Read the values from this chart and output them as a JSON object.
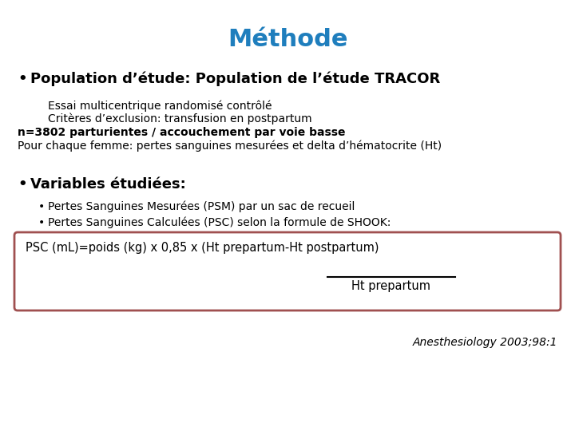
{
  "title": "Méthode",
  "title_color": "#1F7EBD",
  "title_fontsize": 22,
  "bg_color": "#ffffff",
  "bullet1_text": "Population d’étude: Population de l’étude TRACOR",
  "indent1_line1": "Essai multicentrique randomisé contrôlé",
  "indent1_line2": "Critères d’exclusion: transfusion en postpartum",
  "bold_line1": "n=3802 parturientes / accouchement par voie basse",
  "normal_line1": "Pour chaque femme: pertes sanguines mesurées et delta d’hématocrite (Ht)",
  "bullet2_text": "Variables étudiées:",
  "sub_bullet1": "Pertes Sanguines Mesurées (PSM) par un sac de recueil",
  "sub_bullet2": "Pertes Sanguines Calculées (PSC) selon la formule de SHOOK:",
  "box_line1": "PSC (mL)=poids (kg) x 0,85 x (Ht prepartum-Ht postpartum)",
  "box_line2": "Ht prepartum",
  "box_border_color": "#A05050",
  "box_bg_color": "#ffffff",
  "citation": "Anesthesiology 2003;98:1",
  "text_color": "#000000",
  "body_fontsize": 10,
  "bullet_fontsize": 13,
  "sub_bullet_fontsize": 10
}
